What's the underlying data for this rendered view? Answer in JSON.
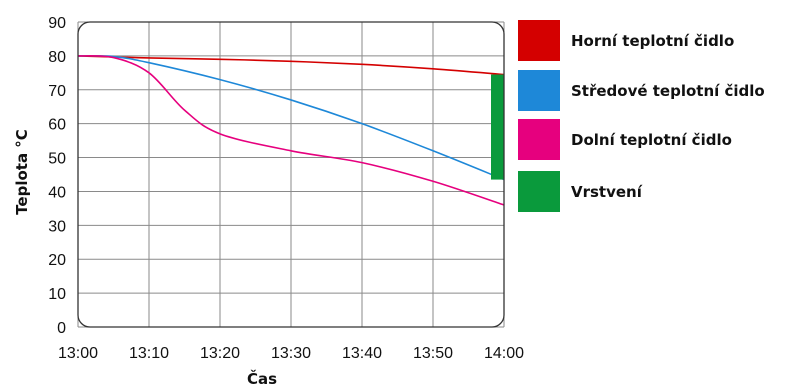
{
  "chart_data": {
    "type": "line",
    "xlabel": "Čas",
    "ylabel": "Teplota °C",
    "x_ticks": [
      "13:00",
      "13:10",
      "13:20",
      "13:30",
      "13:40",
      "13:50",
      "14:00"
    ],
    "y_ticks": [
      "0",
      "10",
      "20",
      "30",
      "40",
      "50",
      "60",
      "70",
      "80",
      "90"
    ],
    "xlim": [
      "13:00",
      "14:00"
    ],
    "ylim": [
      0,
      90
    ],
    "grid": true,
    "legend_position": "right",
    "series": [
      {
        "name": "Horní teplotní čidlo",
        "color": "#d40000",
        "x": [
          "13:00",
          "13:05",
          "13:10",
          "13:20",
          "13:30",
          "13:40",
          "13:50",
          "14:00"
        ],
        "values": [
          80,
          79.7,
          79.4,
          79,
          78.4,
          77.5,
          76.2,
          74.5
        ]
      },
      {
        "name": "Středové teplotní čidlo",
        "color": "#1e88d8",
        "x": [
          "13:00",
          "13:05",
          "13:10",
          "13:20",
          "13:30",
          "13:40",
          "13:50",
          "14:00"
        ],
        "values": [
          80,
          79.8,
          78,
          73,
          67,
          60,
          52,
          43.5
        ]
      },
      {
        "name": "Dolní teplotní čidlo",
        "color": "#e6007e",
        "x": [
          "13:00",
          "13:05",
          "13:10",
          "13:15",
          "13:20",
          "13:30",
          "13:40",
          "13:50",
          "14:00"
        ],
        "values": [
          80,
          79.5,
          75,
          64,
          57,
          52,
          48.5,
          43,
          36
        ]
      }
    ],
    "legend": [
      {
        "label": "Horní teplotní čidlo",
        "color": "#d40000"
      },
      {
        "label": "Středové teplotní čidlo",
        "color": "#1e88d8"
      },
      {
        "label": "Dolní teplotní čidlo",
        "color": "#e6007e"
      },
      {
        "label": "Vrstvení",
        "color": "#0a9a3c"
      }
    ],
    "stratification": {
      "label": "Vrstvení",
      "x": "14:00",
      "from": 43.5,
      "to": 74.5,
      "color": "#0a9a3c"
    }
  }
}
